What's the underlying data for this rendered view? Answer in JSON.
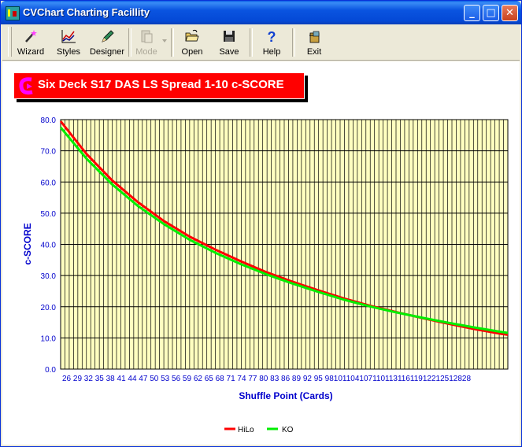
{
  "window": {
    "title": "CVChart Charting Facillity"
  },
  "titlebar_buttons": {
    "minimize": "_",
    "maximize": "□",
    "close": "✕"
  },
  "toolbar": {
    "wizard": "Wizard",
    "styles": "Styles",
    "designer": "Designer",
    "mode": "Mode",
    "open": "Open",
    "save": "Save",
    "help": "Help",
    "exit": "Exit"
  },
  "icons": [
    "wizard-wand-icon",
    "styles-chart-icon",
    "designer-pencil-icon",
    "mode-clipboard-icon",
    "dropdown-arrow-icon",
    "open-folder-icon",
    "save-disk-icon",
    "help-question-icon",
    "exit-door-icon"
  ],
  "colors": {
    "plot_bg": "#ffffc0",
    "hilo": "#ff0000",
    "ko": "#00ee00",
    "axis_text": "#0000cc",
    "title_bg": "#ff0000"
  },
  "chart_data": {
    "type": "line",
    "title": "Six Deck S17 DAS LS Spread 1-10 c-SCORE",
    "xlabel": "Shuffle Point (Cards)",
    "ylabel": "c-SCORE",
    "ylim": [
      0,
      80
    ],
    "yticks": [
      "0.0",
      "10.0",
      "20.0",
      "30.0",
      "40.0",
      "50.0",
      "60.0",
      "70.0",
      "80.0"
    ],
    "x_tick_labels": [
      "26",
      "29",
      "32",
      "35",
      "38",
      "41",
      "44",
      "47",
      "50",
      "53",
      "56",
      "59",
      "62",
      "65",
      "68",
      "71",
      "74",
      "77",
      "80",
      "83",
      "86",
      "89",
      "92",
      "95",
      "98",
      "101",
      "104",
      "107",
      "110",
      "113",
      "116",
      "119",
      "122",
      "125",
      "128"
    ],
    "x_tick_text": "26 29 32 35 38 41 44 47 50 53 56 59 62 65 68 71 74 77 80 83 86 89 92 95 9810110410711011311611912212512828",
    "grid": true,
    "legend_position": "bottom",
    "x": [
      26,
      32,
      38,
      44,
      50,
      56,
      62,
      68,
      74,
      80,
      86,
      92,
      98,
      104,
      110,
      116,
      122,
      128,
      130
    ],
    "series": [
      {
        "name": "HiLo",
        "values": [
          79.5,
          69.0,
          60.5,
          53.5,
          47.5,
          42.5,
          38.3,
          34.5,
          31.0,
          28.0,
          25.2,
          22.6,
          20.3,
          18.3,
          16.4,
          14.6,
          12.9,
          11.4,
          11.0
        ]
      },
      {
        "name": "KO",
        "values": [
          77.5,
          67.5,
          59.2,
          52.3,
          46.5,
          41.5,
          37.3,
          33.6,
          30.3,
          27.4,
          24.7,
          22.2,
          20.1,
          18.2,
          16.5,
          14.9,
          13.4,
          12.0,
          11.6
        ]
      }
    ]
  }
}
